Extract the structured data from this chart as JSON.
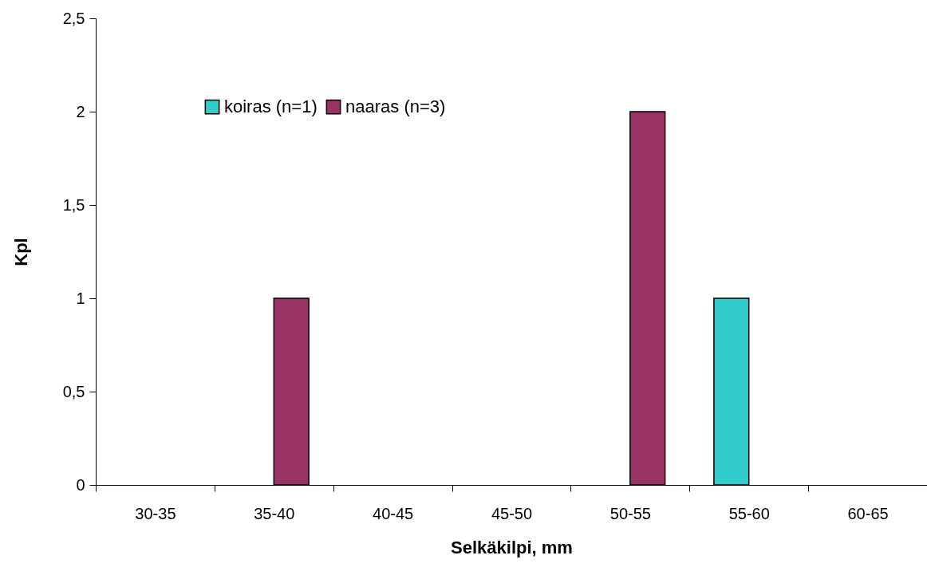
{
  "chart_data": {
    "type": "bar",
    "xlabel": "Selkäkilpi, mm",
    "ylabel": "Kpl",
    "categories": [
      "30-35",
      "35-40",
      "40-45",
      "45-50",
      "50-55",
      "55-60",
      "60-65"
    ],
    "series": [
      {
        "name": "koiras (n=1)",
        "color": "#33cccc",
        "values": [
          0,
          0,
          0,
          0,
          0,
          1,
          0
        ]
      },
      {
        "name": "naaras (n=3)",
        "color": "#993366",
        "values": [
          0,
          1,
          0,
          0,
          2,
          0,
          0
        ]
      }
    ],
    "ylim": [
      0,
      2.5
    ],
    "yticks": [
      0,
      {
        "value": 0.5,
        "label": "0,5"
      },
      1,
      {
        "value": 1.5,
        "label": "1,5"
      },
      2,
      {
        "value": 2.5,
        "label": "2,5"
      }
    ],
    "grid": false,
    "legend": "top left"
  }
}
